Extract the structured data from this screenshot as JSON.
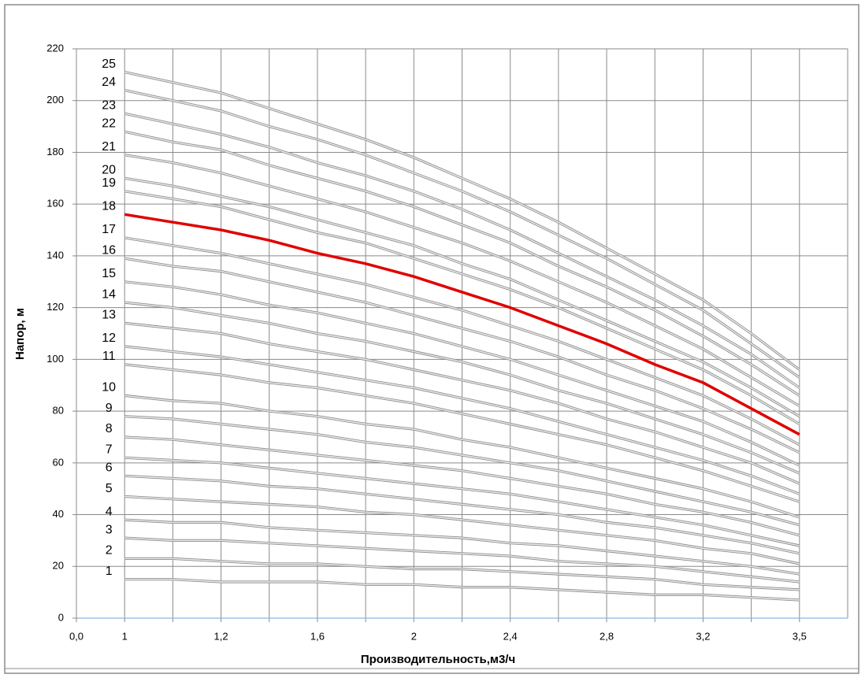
{
  "chart_data": {
    "type": "line",
    "x_label": "Производительность,м3/ч",
    "y_label": "Напор, м",
    "categories": [
      "0,0",
      "1",
      null,
      "1,2",
      null,
      "1,6",
      null,
      "2",
      null,
      "2,4",
      null,
      "2,8",
      null,
      "3,2",
      null,
      "3,5"
    ],
    "ylim": [
      0,
      220
    ],
    "yticks": [
      0,
      20,
      40,
      60,
      80,
      100,
      120,
      140,
      160,
      180,
      200,
      220
    ],
    "grid": true,
    "series": [
      {
        "name": "1",
        "color": "#bdbdbd",
        "values": [
          null,
          15,
          15,
          14,
          14,
          14,
          13,
          13,
          12,
          12,
          11,
          10,
          9,
          9,
          8,
          7
        ]
      },
      {
        "name": "2",
        "color": "#bdbdbd",
        "values": [
          null,
          23,
          23,
          22,
          21,
          21,
          20,
          19,
          19,
          18,
          17,
          16,
          15,
          13,
          12,
          11
        ]
      },
      {
        "name": "3",
        "color": "#bdbdbd",
        "values": [
          null,
          31,
          30,
          30,
          29,
          28,
          27,
          26,
          25,
          24,
          22,
          21,
          20,
          18,
          16,
          14
        ]
      },
      {
        "name": "4",
        "color": "#bdbdbd",
        "values": [
          null,
          38,
          37,
          37,
          35,
          34,
          33,
          32,
          31,
          29,
          28,
          26,
          24,
          22,
          20,
          17
        ]
      },
      {
        "name": "5",
        "color": "#bdbdbd",
        "values": [
          null,
          47,
          46,
          45,
          44,
          43,
          41,
          40,
          38,
          36,
          34,
          32,
          30,
          27,
          25,
          21
        ]
      },
      {
        "name": "6",
        "color": "#bdbdbd",
        "values": [
          null,
          55,
          54,
          53,
          51,
          50,
          48,
          46,
          44,
          42,
          40,
          37,
          35,
          32,
          29,
          25
        ]
      },
      {
        "name": "7",
        "color": "#bdbdbd",
        "values": [
          null,
          62,
          61,
          60,
          58,
          56,
          54,
          52,
          50,
          48,
          45,
          42,
          39,
          36,
          32,
          28
        ]
      },
      {
        "name": "8",
        "color": "#bdbdbd",
        "values": [
          null,
          70,
          69,
          67,
          65,
          63,
          61,
          59,
          57,
          54,
          51,
          48,
          44,
          41,
          37,
          32
        ]
      },
      {
        "name": "9",
        "color": "#bdbdbd",
        "values": [
          null,
          78,
          77,
          75,
          73,
          71,
          68,
          66,
          63,
          60,
          57,
          53,
          49,
          45,
          41,
          36
        ]
      },
      {
        "name": "10",
        "color": "#bdbdbd",
        "values": [
          null,
          86,
          84,
          83,
          80,
          78,
          75,
          73,
          69,
          66,
          62,
          58,
          54,
          50,
          45,
          39
        ]
      },
      {
        "name": "11",
        "color": "#bdbdbd",
        "values": [
          null,
          98,
          96,
          94,
          91,
          89,
          86,
          83,
          79,
          75,
          71,
          67,
          62,
          57,
          51,
          45
        ]
      },
      {
        "name": "12",
        "color": "#bdbdbd",
        "values": [
          null,
          105,
          103,
          101,
          98,
          95,
          92,
          89,
          85,
          81,
          76,
          71,
          66,
          61,
          55,
          48
        ]
      },
      {
        "name": "13",
        "color": "#bdbdbd",
        "values": [
          null,
          114,
          112,
          110,
          106,
          103,
          100,
          96,
          92,
          88,
          83,
          77,
          72,
          66,
          60,
          52
        ]
      },
      {
        "name": "14",
        "color": "#bdbdbd",
        "values": [
          null,
          122,
          120,
          117,
          114,
          110,
          107,
          103,
          99,
          94,
          88,
          83,
          77,
          71,
          64,
          56
        ]
      },
      {
        "name": "15",
        "color": "#bdbdbd",
        "values": [
          null,
          130,
          128,
          125,
          121,
          118,
          114,
          110,
          105,
          100,
          94,
          88,
          82,
          76,
          68,
          59
        ]
      },
      {
        "name": "16",
        "color": "#bdbdbd",
        "values": [
          null,
          139,
          136,
          134,
          130,
          126,
          122,
          117,
          112,
          107,
          101,
          94,
          88,
          81,
          73,
          64
        ]
      },
      {
        "name": "17",
        "color": "#bdbdbd",
        "values": [
          null,
          147,
          144,
          141,
          137,
          133,
          129,
          124,
          119,
          113,
          107,
          100,
          93,
          86,
          77,
          67
        ]
      },
      {
        "name": "18",
        "color": "#e00000",
        "values": [
          null,
          156,
          153,
          150,
          146,
          141,
          137,
          132,
          126,
          120,
          113,
          106,
          98,
          91,
          81,
          71
        ]
      },
      {
        "name": "19",
        "color": "#bdbdbd",
        "values": [
          null,
          165,
          162,
          159,
          154,
          149,
          145,
          139,
          133,
          127,
          120,
          112,
          104,
          96,
          86,
          75
        ]
      },
      {
        "name": "20",
        "color": "#bdbdbd",
        "values": [
          null,
          170,
          167,
          163,
          159,
          154,
          149,
          144,
          137,
          131,
          123,
          115,
          107,
          99,
          89,
          78
        ]
      },
      {
        "name": "21",
        "color": "#bdbdbd",
        "values": [
          null,
          179,
          176,
          172,
          167,
          162,
          157,
          151,
          145,
          138,
          130,
          122,
          113,
          104,
          93,
          82
        ]
      },
      {
        "name": "22",
        "color": "#bdbdbd",
        "values": [
          null,
          188,
          184,
          181,
          175,
          170,
          165,
          159,
          152,
          145,
          136,
          128,
          119,
          109,
          98,
          86
        ]
      },
      {
        "name": "23",
        "color": "#bdbdbd",
        "values": [
          null,
          195,
          191,
          187,
          182,
          176,
          171,
          165,
          158,
          150,
          141,
          132,
          123,
          113,
          102,
          89
        ]
      },
      {
        "name": "24",
        "color": "#bdbdbd",
        "values": [
          null,
          204,
          200,
          196,
          190,
          185,
          179,
          172,
          165,
          157,
          148,
          139,
          129,
          119,
          106,
          93
        ]
      },
      {
        "name": "25",
        "color": "#bdbdbd",
        "values": [
          null,
          211,
          207,
          203,
          197,
          191,
          185,
          178,
          170,
          162,
          153,
          143,
          133,
          123,
          110,
          96
        ]
      }
    ]
  }
}
